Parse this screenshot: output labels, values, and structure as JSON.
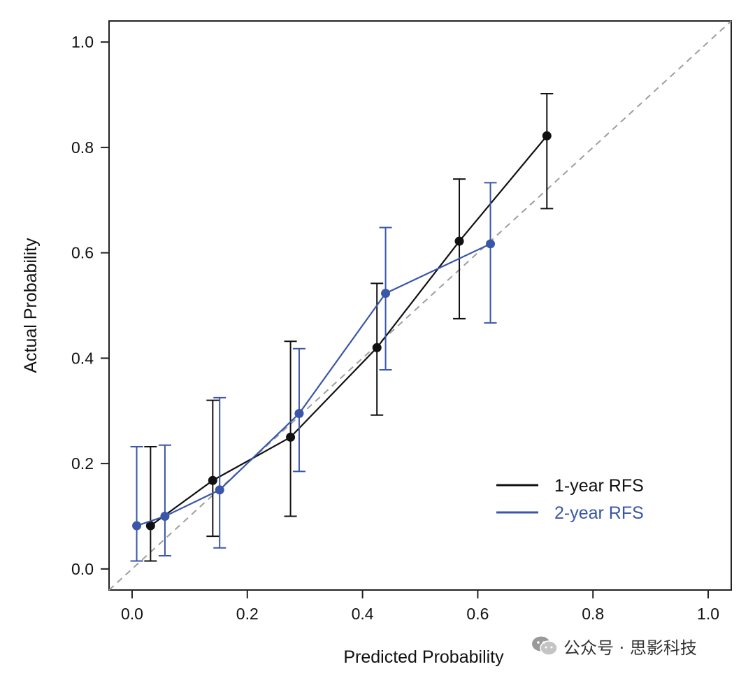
{
  "chart_data": {
    "type": "line",
    "title": "",
    "xlabel": "Predicted Probability",
    "ylabel": "Actual Probability",
    "xlim": [
      -0.04,
      1.04
    ],
    "ylim": [
      -0.04,
      1.04
    ],
    "x_ticks": [
      "0.0",
      "0.2",
      "0.4",
      "0.6",
      "0.8",
      "1.0"
    ],
    "y_ticks": [
      "0.0",
      "0.2",
      "0.4",
      "0.6",
      "0.8",
      "1.0"
    ],
    "x_tick_values": [
      0,
      0.2,
      0.4,
      0.6,
      0.8,
      1.0
    ],
    "y_tick_values": [
      0,
      0.2,
      0.4,
      0.6,
      0.8,
      1.0
    ],
    "grid": false,
    "legend_position": "bottom-right",
    "reference_line": {
      "style": "dashed",
      "color": "#9e9e9e",
      "from": [
        -0.04,
        -0.04
      ],
      "to": [
        1.04,
        1.04
      ]
    },
    "series": [
      {
        "name": "1-year RFS",
        "color": "#111111",
        "x": [
          0.032,
          0.14,
          0.275,
          0.425,
          0.568,
          0.72
        ],
        "y": [
          0.082,
          0.168,
          0.25,
          0.42,
          0.622,
          0.822
        ],
        "lower": [
          0.015,
          0.062,
          0.1,
          0.292,
          0.475,
          0.684
        ],
        "upper": [
          0.232,
          0.32,
          0.432,
          0.542,
          0.74,
          0.902
        ]
      },
      {
        "name": "2-year RFS",
        "color": "#3a56a8",
        "x": [
          0.008,
          0.057,
          0.152,
          0.29,
          0.44,
          0.622
        ],
        "y": [
          0.082,
          0.1,
          0.15,
          0.295,
          0.523,
          0.617
        ],
        "lower": [
          0.015,
          0.025,
          0.04,
          0.185,
          0.378,
          0.467
        ],
        "upper": [
          0.232,
          0.235,
          0.325,
          0.418,
          0.648,
          0.733
        ]
      }
    ]
  },
  "watermark": {
    "text": "公众号 · 思影科技",
    "icon": "wechat-icon"
  }
}
